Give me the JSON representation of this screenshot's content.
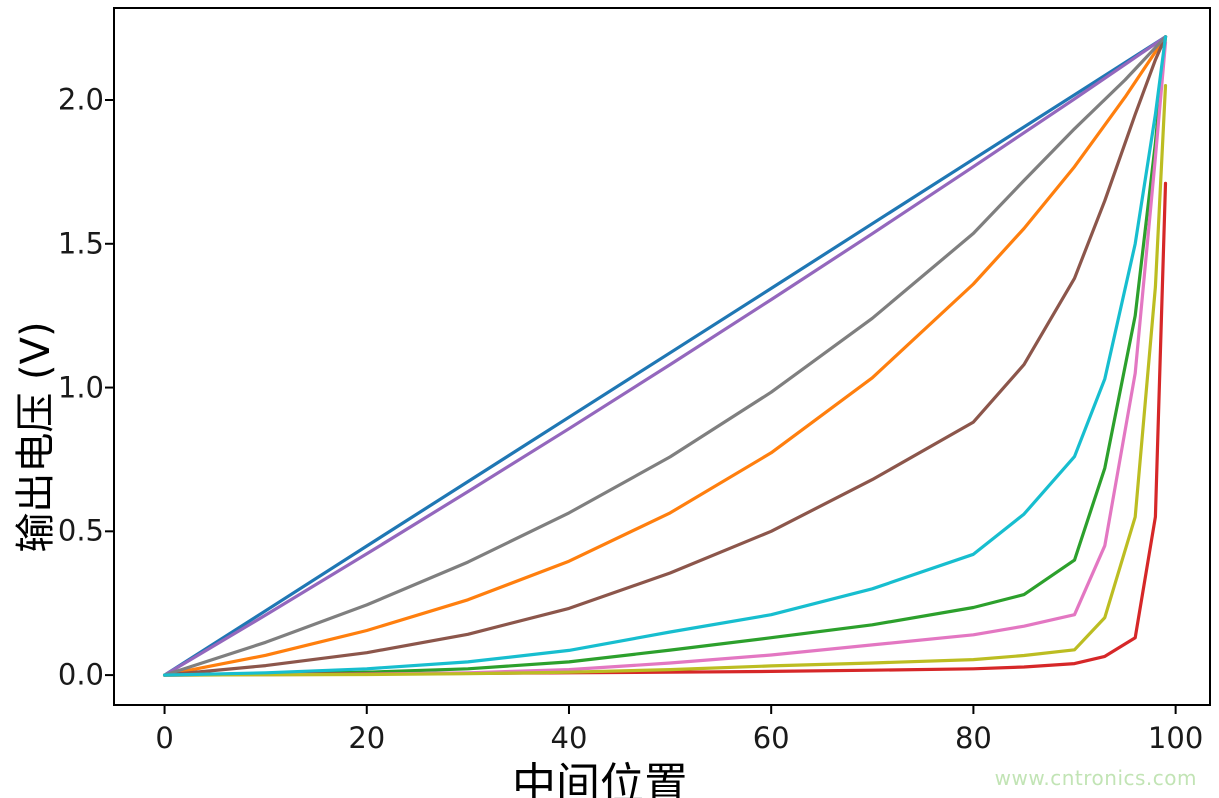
{
  "watermark": {
    "text": "www.cntronics.com",
    "color": "#c2e4b5"
  },
  "chart_data": {
    "type": "line",
    "title": "",
    "xlabel": "中间位置",
    "ylabel": "输出电压 (V)",
    "grid": false,
    "legend": "none",
    "xlim": [
      -5.0,
      103.4
    ],
    "ylim": [
      -0.104,
      2.32
    ],
    "x_ticks": [
      0,
      20,
      40,
      60,
      80,
      100
    ],
    "x_tick_labels": [
      "0",
      "20",
      "40",
      "60",
      "80",
      "100"
    ],
    "y_ticks": [
      0.0,
      0.5,
      1.0,
      1.5,
      2.0
    ],
    "y_tick_labels": [
      "0.0",
      "0.5",
      "1.0",
      "1.5",
      "2.0"
    ],
    "axis_color": "#000000",
    "tick_label_color": "#1a1a1a",
    "series": [
      {
        "name": "curve-blue",
        "color": "#1f77b4",
        "x": [
          0,
          10,
          20,
          30,
          40,
          50,
          60,
          70,
          80,
          90,
          99
        ],
        "v": [
          0,
          0.224,
          0.449,
          0.673,
          0.897,
          1.121,
          1.345,
          1.57,
          1.794,
          2.018,
          2.22
        ]
      },
      {
        "name": "curve-orange",
        "color": "#ff7f0e",
        "x": [
          0,
          10,
          20,
          30,
          40,
          50,
          60,
          70,
          80,
          85,
          90,
          95,
          99
        ],
        "v": [
          0,
          0.069,
          0.155,
          0.262,
          0.396,
          0.564,
          0.773,
          1.034,
          1.36,
          1.553,
          1.768,
          2.01,
          2.22
        ]
      },
      {
        "name": "curve-green",
        "color": "#2ca02c",
        "x": [
          0,
          10,
          20,
          30,
          40,
          50,
          60,
          70,
          80,
          85,
          90,
          93,
          96,
          98,
          99
        ],
        "v": [
          0,
          0.004,
          0.01,
          0.022,
          0.046,
          0.087,
          0.13,
          0.175,
          0.235,
          0.28,
          0.4,
          0.72,
          1.25,
          1.85,
          2.22
        ]
      },
      {
        "name": "curve-red",
        "color": "#d62728",
        "x": [
          0,
          10,
          20,
          30,
          40,
          50,
          60,
          70,
          80,
          85,
          90,
          93,
          96,
          98,
          99
        ],
        "v": [
          0,
          0.002,
          0.004,
          0.006,
          0.008,
          0.01,
          0.013,
          0.017,
          0.022,
          0.028,
          0.04,
          0.065,
          0.13,
          0.55,
          1.71
        ]
      },
      {
        "name": "curve-purple",
        "color": "#9467bd",
        "x": [
          0,
          10,
          20,
          30,
          40,
          50,
          60,
          70,
          80,
          90,
          95,
          99
        ],
        "v": [
          0,
          0.209,
          0.422,
          0.638,
          0.857,
          1.08,
          1.306,
          1.535,
          1.768,
          2.004,
          2.124,
          2.22
        ]
      },
      {
        "name": "curve-brown",
        "color": "#8c564b",
        "x": [
          0,
          10,
          20,
          30,
          40,
          50,
          60,
          70,
          80,
          85,
          90,
          93,
          96,
          98,
          99
        ],
        "v": [
          0,
          0.033,
          0.078,
          0.142,
          0.232,
          0.355,
          0.5,
          0.68,
          0.88,
          1.08,
          1.38,
          1.65,
          1.95,
          2.14,
          2.22
        ]
      },
      {
        "name": "curve-pink",
        "color": "#e377c2",
        "x": [
          0,
          10,
          20,
          30,
          40,
          50,
          60,
          70,
          80,
          85,
          90,
          93,
          96,
          98,
          99
        ],
        "v": [
          0,
          0.001,
          0.003,
          0.008,
          0.019,
          0.042,
          0.07,
          0.105,
          0.14,
          0.17,
          0.21,
          0.45,
          1.05,
          1.8,
          2.2
        ]
      },
      {
        "name": "curve-gray",
        "color": "#7f7f7f",
        "x": [
          0,
          10,
          20,
          30,
          40,
          50,
          60,
          70,
          80,
          85,
          90,
          95,
          99
        ],
        "v": [
          0,
          0.114,
          0.244,
          0.393,
          0.564,
          0.759,
          0.984,
          1.241,
          1.536,
          1.72,
          1.9,
          2.07,
          2.22
        ]
      },
      {
        "name": "curve-olive",
        "color": "#bcbd22",
        "x": [
          0,
          10,
          20,
          30,
          40,
          50,
          60,
          70,
          80,
          85,
          90,
          93,
          96,
          98,
          99
        ],
        "v": [
          0,
          0.001,
          0.002,
          0.005,
          0.01,
          0.019,
          0.032,
          0.042,
          0.054,
          0.068,
          0.088,
          0.2,
          0.55,
          1.35,
          2.05
        ]
      },
      {
        "name": "curve-cyan",
        "color": "#17becf",
        "x": [
          0,
          10,
          20,
          30,
          40,
          50,
          60,
          70,
          80,
          85,
          90,
          93,
          96,
          98,
          99
        ],
        "v": [
          0,
          0.008,
          0.022,
          0.046,
          0.086,
          0.15,
          0.21,
          0.3,
          0.42,
          0.56,
          0.76,
          1.03,
          1.5,
          1.95,
          2.22
        ]
      }
    ]
  }
}
